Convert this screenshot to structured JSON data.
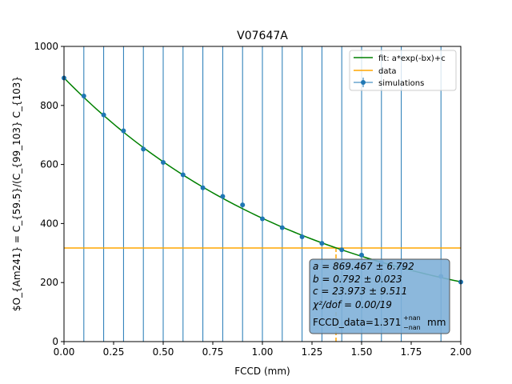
{
  "chart_data": {
    "type": "scatter",
    "title": "V07647A",
    "xlabel": "FCCD (mm)",
    "ylabel": "$O_{Am241} = C_{59.5}/(C_{99_103} C_{103}",
    "xlim": [
      0.0,
      2.0
    ],
    "ylim": [
      0,
      1000
    ],
    "x_ticks": [
      0.0,
      0.25,
      0.5,
      0.75,
      1.0,
      1.25,
      1.5,
      1.75,
      2.0
    ],
    "x_tick_labels": [
      "0.00",
      "0.25",
      "0.50",
      "0.75",
      "1.00",
      "1.25",
      "1.50",
      "1.75",
      "2.00"
    ],
    "y_ticks": [
      0,
      200,
      400,
      600,
      800,
      1000
    ],
    "y_tick_labels": [
      "0",
      "200",
      "400",
      "600",
      "800",
      "1000"
    ],
    "grid": false,
    "legend_position": "top-right",
    "legend": [
      {
        "label": "fit: a*exp(-bx)+c",
        "color": "#008000",
        "kind": "line"
      },
      {
        "label": "data",
        "color": "#ffa500",
        "kind": "line"
      },
      {
        "label": "simulations",
        "color": "#1f77b4",
        "kind": "errorbar"
      }
    ],
    "series": [
      {
        "name": "simulations",
        "color": "#1f77b4",
        "x": [
          0.0,
          0.1,
          0.2,
          0.3,
          0.4,
          0.5,
          0.6,
          0.7,
          0.8,
          0.9,
          1.0,
          1.1,
          1.2,
          1.3,
          1.4,
          1.5,
          1.6,
          1.7,
          1.9,
          2.0
        ],
        "y": [
          893,
          832,
          768,
          714,
          652,
          607,
          565,
          521,
          492,
          463,
          416,
          386,
          355,
          333,
          311,
          293,
          268,
          250,
          221,
          202
        ]
      }
    ],
    "fit": {
      "a": 869.467,
      "b": 0.792,
      "c": 23.973,
      "color": "#008000"
    },
    "data_line": {
      "y": 317,
      "x": 1.371,
      "color": "#ffa500"
    },
    "annotation": {
      "a_line": "a = 869.467 ± 6.792",
      "b_line": "b = 0.792 ± 0.023",
      "c_line": "c = 23.973 ± 9.511",
      "chi_line": "χ²/dof = 0.00/19",
      "fccd_prefix": "FCCD_data=1.371",
      "fccd_sup": "+nan",
      "fccd_sub": "−nan",
      "fccd_unit": "mm"
    }
  }
}
